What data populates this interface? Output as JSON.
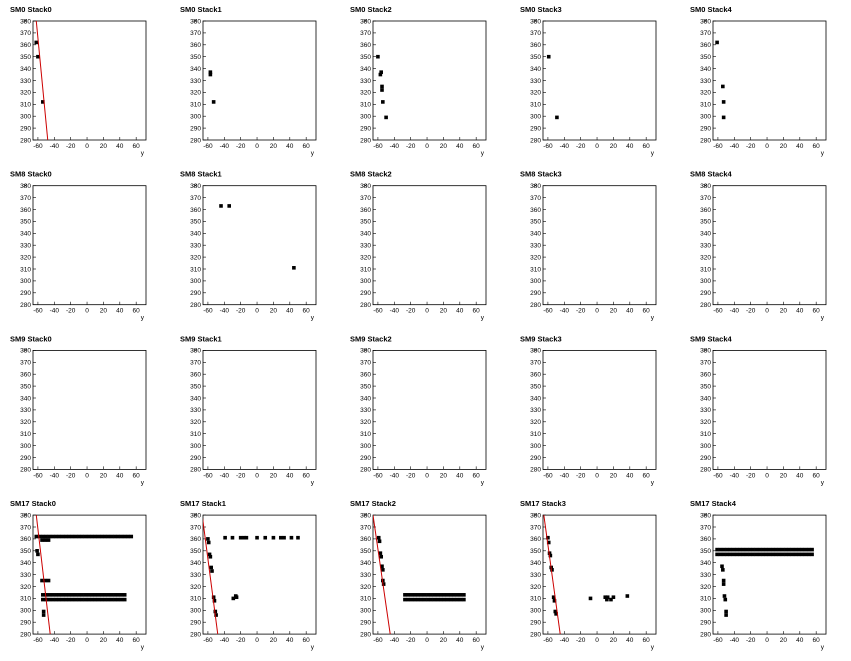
{
  "chart_data": [
    {
      "type": "scatter",
      "title": "SM0 Stack0",
      "x_label": "y",
      "y_label": "x",
      "xlim": [
        -66,
        72
      ],
      "ylim": [
        280,
        380
      ],
      "xticks": [
        -60,
        -40,
        -20,
        0,
        20,
        40,
        60
      ],
      "yticks": [
        280,
        290,
        300,
        310,
        320,
        330,
        340,
        350,
        360,
        370,
        380
      ],
      "color": "#000000",
      "x": [
        -62,
        -60,
        -54
      ],
      "values": [
        362,
        350,
        312
      ],
      "fit": {
        "color": "#cc0000",
        "x": [
          -62,
          -48
        ],
        "values": [
          380,
          280
        ]
      }
    },
    {
      "type": "scatter",
      "title": "SM0 Stack1",
      "x_label": "y",
      "y_label": "x",
      "xlim": [
        -66,
        72
      ],
      "ylim": [
        280,
        380
      ],
      "xticks": [
        -60,
        -40,
        -20,
        0,
        20,
        40,
        60
      ],
      "yticks": [
        280,
        290,
        300,
        310,
        320,
        330,
        340,
        350,
        360,
        370,
        380
      ],
      "color": "#000000",
      "x": [
        -57,
        -57,
        -53
      ],
      "values": [
        337,
        335,
        312
      ]
    },
    {
      "type": "scatter",
      "title": "SM0 Stack2",
      "x_label": "y",
      "y_label": "x",
      "xlim": [
        -66,
        72
      ],
      "ylim": [
        280,
        380
      ],
      "xticks": [
        -60,
        -40,
        -20,
        0,
        20,
        40,
        60
      ],
      "yticks": [
        280,
        290,
        300,
        310,
        320,
        330,
        340,
        350,
        360,
        370,
        380
      ],
      "color": "#000000",
      "x": [
        -60,
        -56,
        -57,
        -55,
        -55,
        -54,
        -50
      ],
      "values": [
        350,
        337,
        335,
        325,
        322,
        312,
        299
      ]
    },
    {
      "type": "scatter",
      "title": "SM0 Stack3",
      "x_label": "y",
      "y_label": "x",
      "xlim": [
        -66,
        72
      ],
      "ylim": [
        280,
        380
      ],
      "xticks": [
        -60,
        -40,
        -20,
        0,
        20,
        40,
        60
      ],
      "yticks": [
        280,
        290,
        300,
        310,
        320,
        330,
        340,
        350,
        360,
        370,
        380
      ],
      "color": "#000000",
      "x": [
        -59,
        -49
      ],
      "values": [
        350,
        299
      ]
    },
    {
      "type": "scatter",
      "title": "SM0 Stack4",
      "x_label": "y",
      "y_label": "x",
      "xlim": [
        -66,
        72
      ],
      "ylim": [
        280,
        380
      ],
      "xticks": [
        -60,
        -40,
        -20,
        0,
        20,
        40,
        60
      ],
      "yticks": [
        280,
        290,
        300,
        310,
        320,
        330,
        340,
        350,
        360,
        370,
        380
      ],
      "color": "#000000",
      "x": [
        -61,
        -54,
        -53,
        -53
      ],
      "values": [
        362,
        325,
        312,
        299
      ]
    },
    {
      "type": "scatter",
      "title": "SM8 Stack0",
      "x_label": "y",
      "y_label": "x",
      "xlim": [
        -66,
        72
      ],
      "ylim": [
        280,
        380
      ],
      "xticks": [
        -60,
        -40,
        -20,
        0,
        20,
        40,
        60
      ],
      "yticks": [
        280,
        290,
        300,
        310,
        320,
        330,
        340,
        350,
        360,
        370,
        380
      ],
      "color": "#000000",
      "x": [],
      "values": []
    },
    {
      "type": "scatter",
      "title": "SM8 Stack1",
      "x_label": "y",
      "y_label": "x",
      "xlim": [
        -66,
        72
      ],
      "ylim": [
        280,
        380
      ],
      "xticks": [
        -60,
        -40,
        -20,
        0,
        20,
        40,
        60
      ],
      "yticks": [
        280,
        290,
        300,
        310,
        320,
        330,
        340,
        350,
        360,
        370,
        380
      ],
      "color": "#000000",
      "x": [
        -44,
        -34,
        45
      ],
      "values": [
        363,
        363,
        311
      ]
    },
    {
      "type": "scatter",
      "title": "SM8 Stack2",
      "x_label": "y",
      "y_label": "x",
      "xlim": [
        -66,
        72
      ],
      "ylim": [
        280,
        380
      ],
      "xticks": [
        -60,
        -40,
        -20,
        0,
        20,
        40,
        60
      ],
      "yticks": [
        280,
        290,
        300,
        310,
        320,
        330,
        340,
        350,
        360,
        370,
        380
      ],
      "color": "#000000",
      "x": [],
      "values": []
    },
    {
      "type": "scatter",
      "title": "SM8 Stack3",
      "x_label": "y",
      "y_label": "x",
      "xlim": [
        -66,
        72
      ],
      "ylim": [
        280,
        380
      ],
      "xticks": [
        -60,
        -40,
        -20,
        0,
        20,
        40,
        60
      ],
      "yticks": [
        280,
        290,
        300,
        310,
        320,
        330,
        340,
        350,
        360,
        370,
        380
      ],
      "color": "#000000",
      "x": [],
      "values": []
    },
    {
      "type": "scatter",
      "title": "SM8 Stack4",
      "x_label": "y",
      "y_label": "x",
      "xlim": [
        -66,
        72
      ],
      "ylim": [
        280,
        380
      ],
      "xticks": [
        -60,
        -40,
        -20,
        0,
        20,
        40,
        60
      ],
      "yticks": [
        280,
        290,
        300,
        310,
        320,
        330,
        340,
        350,
        360,
        370,
        380
      ],
      "color": "#000000",
      "x": [],
      "values": []
    },
    {
      "type": "scatter",
      "title": "SM9 Stack0",
      "x_label": "y",
      "y_label": "x",
      "xlim": [
        -66,
        72
      ],
      "ylim": [
        280,
        380
      ],
      "xticks": [
        -60,
        -40,
        -20,
        0,
        20,
        40,
        60
      ],
      "yticks": [
        280,
        290,
        300,
        310,
        320,
        330,
        340,
        350,
        360,
        370,
        380
      ],
      "color": "#000000",
      "x": [],
      "values": []
    },
    {
      "type": "scatter",
      "title": "SM9 Stack1",
      "x_label": "y",
      "y_label": "x",
      "xlim": [
        -66,
        72
      ],
      "ylim": [
        280,
        380
      ],
      "xticks": [
        -60,
        -40,
        -20,
        0,
        20,
        40,
        60
      ],
      "yticks": [
        280,
        290,
        300,
        310,
        320,
        330,
        340,
        350,
        360,
        370,
        380
      ],
      "color": "#000000",
      "x": [],
      "values": []
    },
    {
      "type": "scatter",
      "title": "SM9 Stack2",
      "x_label": "y",
      "y_label": "x",
      "xlim": [
        -66,
        72
      ],
      "ylim": [
        280,
        380
      ],
      "xticks": [
        -60,
        -40,
        -20,
        0,
        20,
        40,
        60
      ],
      "yticks": [
        280,
        290,
        300,
        310,
        320,
        330,
        340,
        350,
        360,
        370,
        380
      ],
      "color": "#000000",
      "x": [],
      "values": []
    },
    {
      "type": "scatter",
      "title": "SM9 Stack3",
      "x_label": "y",
      "y_label": "x",
      "xlim": [
        -66,
        72
      ],
      "ylim": [
        280,
        380
      ],
      "xticks": [
        -60,
        -40,
        -20,
        0,
        20,
        40,
        60
      ],
      "yticks": [
        280,
        290,
        300,
        310,
        320,
        330,
        340,
        350,
        360,
        370,
        380
      ],
      "color": "#000000",
      "x": [],
      "values": []
    },
    {
      "type": "scatter",
      "title": "SM9 Stack4",
      "x_label": "y",
      "y_label": "x",
      "xlim": [
        -66,
        72
      ],
      "ylim": [
        280,
        380
      ],
      "xticks": [
        -60,
        -40,
        -20,
        0,
        20,
        40,
        60
      ],
      "yticks": [
        280,
        290,
        300,
        310,
        320,
        330,
        340,
        350,
        360,
        370,
        380
      ],
      "color": "#000000",
      "x": [],
      "values": []
    },
    {
      "type": "scatter",
      "title": "SM17 Stack0",
      "x_label": "y",
      "y_label": "x",
      "xlim": [
        -66,
        72
      ],
      "ylim": [
        280,
        380
      ],
      "xticks": [
        -60,
        -40,
        -20,
        0,
        20,
        40,
        60
      ],
      "yticks": [
        280,
        290,
        300,
        310,
        320,
        330,
        340,
        350,
        360,
        370,
        380
      ],
      "color": "#000000",
      "x": [
        -62,
        -58,
        -54,
        -50,
        -46,
        -42,
        -38,
        -34,
        -30,
        -26,
        -22,
        -18,
        -14,
        -10,
        -6,
        -2,
        2,
        6,
        10,
        14,
        18,
        22,
        26,
        30,
        34,
        38,
        42,
        46,
        50,
        54,
        -55,
        -51,
        -47,
        -54,
        -50,
        -46,
        -42,
        -38,
        -34,
        -30,
        -26,
        -22,
        -18,
        -14,
        -10,
        -6,
        -2,
        2,
        6,
        10,
        14,
        18,
        22,
        26,
        30,
        34,
        38,
        42,
        46,
        -54,
        -50,
        -46,
        -42,
        -38,
        -34,
        -30,
        -26,
        -22,
        -18,
        -14,
        -10,
        -6,
        -2,
        2,
        6,
        10,
        14,
        18,
        22,
        26,
        30,
        34,
        38,
        42,
        46,
        -61,
        -60,
        -55,
        -51,
        -47,
        -53,
        -53
      ],
      "values": [
        362,
        362,
        362,
        362,
        362,
        362,
        362,
        362,
        362,
        362,
        362,
        362,
        362,
        362,
        362,
        362,
        362,
        362,
        362,
        362,
        362,
        362,
        362,
        362,
        362,
        362,
        362,
        362,
        362,
        362,
        359,
        359,
        359,
        313,
        313,
        313,
        313,
        313,
        313,
        313,
        313,
        313,
        313,
        313,
        313,
        313,
        313,
        313,
        313,
        313,
        313,
        313,
        313,
        313,
        313,
        313,
        313,
        313,
        313,
        309,
        309,
        309,
        309,
        309,
        309,
        309,
        309,
        309,
        309,
        309,
        309,
        309,
        309,
        309,
        309,
        309,
        309,
        309,
        309,
        309,
        309,
        309,
        309,
        309,
        309,
        350,
        347,
        325,
        325,
        325,
        299,
        296
      ],
      "fit": {
        "color": "#cc0000",
        "x": [
          -62,
          -45
        ],
        "values": [
          380,
          280
        ]
      }
    },
    {
      "type": "scatter",
      "title": "SM17 Stack1",
      "x_label": "y",
      "y_label": "x",
      "xlim": [
        -66,
        72
      ],
      "ylim": [
        280,
        380
      ],
      "xticks": [
        -60,
        -40,
        -20,
        0,
        20,
        40,
        60
      ],
      "yticks": [
        280,
        290,
        300,
        310,
        320,
        330,
        340,
        350,
        360,
        370,
        380
      ],
      "color": "#000000",
      "x": [
        -60,
        -59,
        -58,
        -57,
        -56,
        -55,
        -53,
        -52,
        -51,
        -50,
        -39,
        -30,
        -20,
        -16,
        -13,
        0,
        10,
        20,
        29,
        33,
        42,
        50,
        -29,
        -26,
        -25
      ],
      "values": [
        360,
        357,
        347,
        345,
        336,
        333,
        311,
        308,
        299,
        296,
        361,
        361,
        361,
        361,
        361,
        361,
        361,
        361,
        361,
        361,
        361,
        361,
        310,
        312,
        311
      ],
      "fit": {
        "color": "#cc0000",
        "x": [
          -67,
          -48
        ],
        "values": [
          380,
          280
        ]
      }
    },
    {
      "type": "scatter",
      "title": "SM17 Stack2",
      "x_label": "y",
      "y_label": "x",
      "xlim": [
        -66,
        72
      ],
      "ylim": [
        280,
        380
      ],
      "xticks": [
        -60,
        -40,
        -20,
        0,
        20,
        40,
        60
      ],
      "yticks": [
        280,
        290,
        300,
        310,
        320,
        330,
        340,
        350,
        360,
        370,
        380
      ],
      "color": "#000000",
      "x": [
        -59,
        -58,
        -57,
        -56,
        -55,
        -54,
        -54,
        -53,
        -27,
        -23,
        -19,
        -15,
        -11,
        -7,
        -3,
        1,
        5,
        9,
        13,
        17,
        21,
        25,
        29,
        33,
        37,
        41,
        45,
        -27,
        -23,
        -19,
        -15,
        -11,
        -7,
        -3,
        1,
        5,
        9,
        13,
        17,
        21,
        25,
        29,
        33,
        37,
        41,
        45
      ],
      "values": [
        361,
        358,
        348,
        345,
        337,
        334,
        325,
        322,
        313,
        313,
        313,
        313,
        313,
        313,
        313,
        313,
        313,
        313,
        313,
        313,
        313,
        313,
        313,
        313,
        313,
        313,
        313,
        309,
        309,
        309,
        309,
        309,
        309,
        309,
        309,
        309,
        309,
        309,
        309,
        309,
        309,
        309,
        309,
        309,
        309,
        309
      ],
      "fit": {
        "color": "#cc0000",
        "x": [
          -66,
          -45
        ],
        "values": [
          380,
          280
        ]
      }
    },
    {
      "type": "scatter",
      "title": "SM17 Stack3",
      "x_label": "y",
      "y_label": "x",
      "xlim": [
        -66,
        72
      ],
      "ylim": [
        280,
        380
      ],
      "xticks": [
        -60,
        -40,
        -20,
        0,
        20,
        40,
        60
      ],
      "yticks": [
        280,
        290,
        300,
        310,
        320,
        330,
        340,
        350,
        360,
        370,
        380
      ],
      "color": "#000000",
      "x": [
        -60,
        -59,
        -58,
        -57,
        -56,
        -55,
        -53,
        -52,
        -51,
        -50,
        -8,
        10,
        13,
        12,
        17,
        20,
        37
      ],
      "values": [
        361,
        357,
        348,
        346,
        336,
        334,
        311,
        308,
        299,
        297,
        310,
        311,
        311,
        309,
        309,
        311,
        312
      ],
      "fit": {
        "color": "#cc0000",
        "x": [
          -65,
          -45
        ],
        "values": [
          380,
          280
        ]
      }
    },
    {
      "type": "scatter",
      "title": "SM17 Stack4",
      "x_label": "y",
      "y_label": "x",
      "xlim": [
        -66,
        72
      ],
      "ylim": [
        280,
        380
      ],
      "xticks": [
        -60,
        -40,
        -20,
        0,
        20,
        40,
        60
      ],
      "yticks": [
        280,
        290,
        300,
        310,
        320,
        330,
        340,
        350,
        360,
        370,
        380
      ],
      "color": "#000000",
      "x": [
        -61,
        -57,
        -53,
        -49,
        -45,
        -41,
        -37,
        -33,
        -29,
        -25,
        -21,
        -17,
        -13,
        -9,
        -5,
        -1,
        3,
        7,
        11,
        15,
        19,
        23,
        27,
        31,
        35,
        39,
        43,
        47,
        51,
        55,
        -61,
        -57,
        -53,
        -49,
        -45,
        -41,
        -37,
        -33,
        -29,
        -25,
        -21,
        -17,
        -13,
        -9,
        -5,
        -1,
        3,
        7,
        11,
        15,
        19,
        23,
        27,
        31,
        35,
        39,
        43,
        47,
        51,
        55,
        -55,
        -54,
        -53,
        -53,
        -52,
        -51,
        -50,
        -50
      ],
      "values": [
        351,
        351,
        351,
        351,
        351,
        351,
        351,
        351,
        351,
        351,
        351,
        351,
        351,
        351,
        351,
        351,
        351,
        351,
        351,
        351,
        351,
        351,
        351,
        351,
        351,
        351,
        351,
        351,
        351,
        351,
        347,
        347,
        347,
        347,
        347,
        347,
        347,
        347,
        347,
        347,
        347,
        347,
        347,
        347,
        347,
        347,
        347,
        347,
        347,
        347,
        347,
        347,
        347,
        347,
        347,
        347,
        347,
        347,
        347,
        347,
        337,
        334,
        325,
        322,
        312,
        309,
        299,
        296
      ]
    }
  ]
}
